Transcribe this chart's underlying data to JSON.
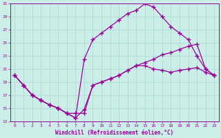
{
  "xlabel": "Windchill (Refroidissement éolien,°C)",
  "bg_color": "#cceee8",
  "grid_color": "#aad8d2",
  "line_color": "#990099",
  "xlim": [
    -0.5,
    23.5
  ],
  "ylim": [
    13,
    31
  ],
  "yticks": [
    13,
    15,
    17,
    19,
    21,
    23,
    25,
    27,
    29,
    31
  ],
  "xticks": [
    0,
    1,
    2,
    3,
    4,
    5,
    6,
    7,
    8,
    9,
    10,
    11,
    12,
    13,
    14,
    15,
    16,
    17,
    18,
    19,
    20,
    21,
    22,
    23
  ],
  "line1_x": [
    0,
    1,
    2,
    3,
    4,
    5,
    6,
    7,
    8,
    9,
    10,
    11,
    12,
    13,
    14,
    15,
    16,
    17,
    18,
    19,
    20,
    21,
    22,
    23
  ],
  "line1_y": [
    20.0,
    18.5,
    17.0,
    16.2,
    15.5,
    15.0,
    14.2,
    13.5,
    14.8,
    18.5,
    19.0,
    19.5,
    20.0,
    20.8,
    21.5,
    21.5,
    21.0,
    20.8,
    20.5,
    20.8,
    21.0,
    21.2,
    20.5,
    20.0
  ],
  "line2_x": [
    0,
    1,
    2,
    3,
    4,
    5,
    6,
    7,
    8,
    9,
    10,
    11,
    12,
    13,
    14,
    15,
    16,
    17,
    18,
    19,
    20,
    21,
    22,
    23
  ],
  "line2_y": [
    20.0,
    18.5,
    17.0,
    16.2,
    15.5,
    15.0,
    14.2,
    13.5,
    22.5,
    25.5,
    26.5,
    27.5,
    28.5,
    29.5,
    30.0,
    31.0,
    30.5,
    29.0,
    27.5,
    26.5,
    25.5,
    23.0,
    21.0,
    20.0
  ],
  "line3_x": [
    0,
    1,
    2,
    3,
    4,
    5,
    6,
    7,
    8,
    9,
    10,
    11,
    12,
    13,
    14,
    15,
    16,
    17,
    18,
    19,
    20,
    21,
    22,
    23
  ],
  "line3_y": [
    20.0,
    18.5,
    17.0,
    16.2,
    15.5,
    15.0,
    14.2,
    14.2,
    14.2,
    18.5,
    19.0,
    19.5,
    20.0,
    20.8,
    21.5,
    22.0,
    22.5,
    23.2,
    23.5,
    24.0,
    24.5,
    24.8,
    21.0,
    20.0
  ]
}
